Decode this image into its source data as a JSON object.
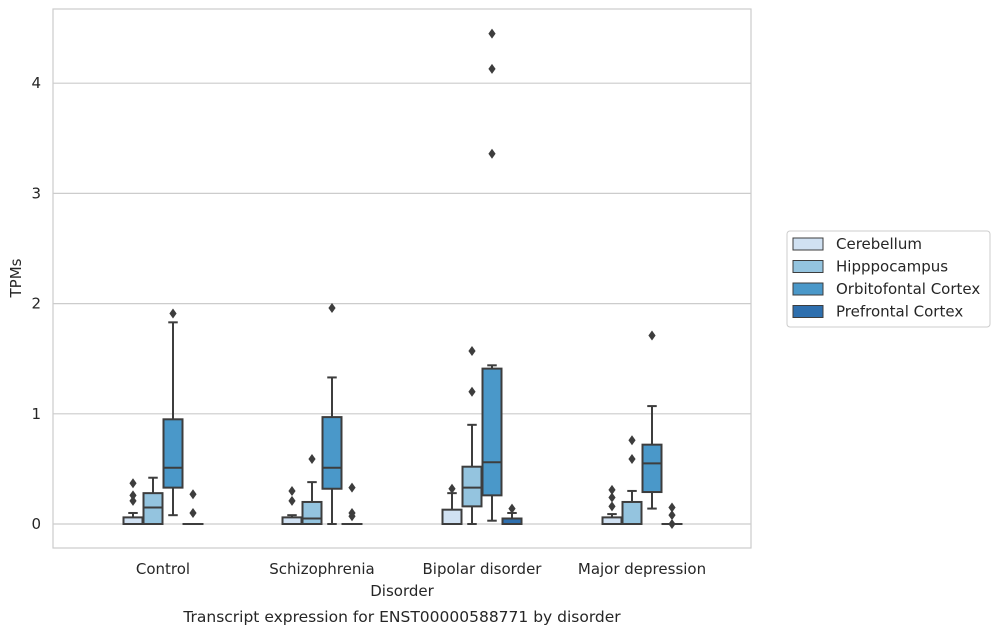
{
  "chart_data": {
    "type": "box",
    "title": "",
    "caption": "Transcript expression for ENST00000588771 by disorder",
    "xlabel": "Disorder",
    "ylabel": "TPMs",
    "ylim": [
      -0.22,
      4.7
    ],
    "yticks": [
      0,
      1,
      2,
      3,
      4
    ],
    "categories": [
      "Control",
      "Schizophrenia",
      "Bipolar disorder",
      "Major depression"
    ],
    "grid": "horizontal",
    "legend_position": "right",
    "series": [
      {
        "name": "Cerebellum",
        "color": "#d0e1f2",
        "boxes": [
          {
            "q1": 0.0,
            "median": 0.0,
            "q3": 0.06,
            "whislo": 0.0,
            "whishi": 0.1,
            "fliers": [
              0.21,
              0.26,
              0.37
            ]
          },
          {
            "q1": 0.0,
            "median": 0.0,
            "q3": 0.06,
            "whislo": 0.0,
            "whishi": 0.08,
            "fliers": [
              0.21,
              0.3
            ]
          },
          {
            "q1": 0.0,
            "median": 0.0,
            "q3": 0.13,
            "whislo": 0.0,
            "whishi": 0.28,
            "fliers": [
              0.32
            ]
          },
          {
            "q1": 0.0,
            "median": 0.0,
            "q3": 0.06,
            "whislo": 0.0,
            "whishi": 0.09,
            "fliers": [
              0.16,
              0.24,
              0.31
            ]
          }
        ]
      },
      {
        "name": "Hipppocampus",
        "color": "#94c4df",
        "boxes": [
          {
            "q1": 0.0,
            "median": 0.15,
            "q3": 0.28,
            "whislo": 0.0,
            "whishi": 0.42,
            "fliers": []
          },
          {
            "q1": 0.0,
            "median": 0.05,
            "q3": 0.2,
            "whislo": 0.0,
            "whishi": 0.38,
            "fliers": [
              0.59
            ]
          },
          {
            "q1": 0.16,
            "median": 0.33,
            "q3": 0.52,
            "whislo": 0.0,
            "whishi": 0.9,
            "fliers": [
              1.2,
              1.57
            ]
          },
          {
            "q1": 0.0,
            "median": 0.0,
            "q3": 0.2,
            "whislo": 0.0,
            "whishi": 0.3,
            "fliers": [
              0.59,
              0.76
            ]
          }
        ]
      },
      {
        "name": "Orbitofontal Cortex",
        "color": "#4a98c9",
        "boxes": [
          {
            "q1": 0.33,
            "median": 0.51,
            "q3": 0.95,
            "whislo": 0.08,
            "whishi": 1.83,
            "fliers": [
              1.91
            ]
          },
          {
            "q1": 0.32,
            "median": 0.51,
            "q3": 0.97,
            "whislo": 0.0,
            "whishi": 1.33,
            "fliers": [
              1.96
            ]
          },
          {
            "q1": 0.26,
            "median": 0.56,
            "q3": 1.41,
            "whislo": 0.03,
            "whishi": 1.44,
            "fliers": [
              3.36,
              4.13,
              4.45
            ]
          },
          {
            "q1": 0.29,
            "median": 0.55,
            "q3": 0.72,
            "whislo": 0.14,
            "whishi": 1.07,
            "fliers": [
              1.71
            ]
          }
        ]
      },
      {
        "name": "Prefrontal Cortex",
        "color": "#2e6fae",
        "boxes": [
          {
            "q1": 0.0,
            "median": 0.0,
            "q3": 0.0,
            "whislo": 0.0,
            "whishi": 0.0,
            "fliers": [
              0.1,
              0.27
            ]
          },
          {
            "q1": 0.0,
            "median": 0.0,
            "q3": 0.0,
            "whislo": 0.0,
            "whishi": 0.0,
            "fliers": [
              0.07,
              0.1,
              0.33
            ]
          },
          {
            "q1": 0.0,
            "median": 0.0,
            "q3": 0.05,
            "whislo": 0.0,
            "whishi": 0.1,
            "fliers": [
              0.14
            ]
          },
          {
            "q1": 0.0,
            "median": 0.0,
            "q3": 0.0,
            "whislo": 0.0,
            "whishi": 0.0,
            "fliers": [
              0.0,
              0.08,
              0.15
            ]
          }
        ]
      }
    ]
  }
}
